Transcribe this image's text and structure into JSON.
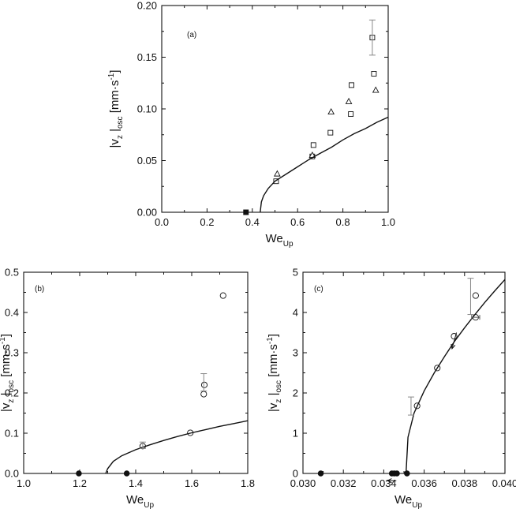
{
  "chart_data": [
    {
      "type": "scatter",
      "panel_label": "(a)",
      "xlabel": {
        "main": "We",
        "sub": "Up"
      },
      "ylabel": {
        "main": "|v",
        "sub1": "z",
        "mid": "|",
        "sub2": "osc",
        "unit": "[mm·s",
        "sup": "-1",
        "close": "]"
      },
      "xlim": [
        0.0,
        1.0
      ],
      "ylim": [
        0.0,
        0.2
      ],
      "xticks": [
        "0.0",
        "0.2",
        "0.4",
        "0.6",
        "0.8",
        "1.0"
      ],
      "yticks": [
        "0.00",
        "0.05",
        "0.10",
        "0.15",
        "0.20"
      ],
      "series": [
        {
          "marker": "square",
          "points": [
            [
              0.505,
              0.03
            ],
            [
              0.665,
              0.054
            ],
            [
              0.67,
              0.065
            ],
            [
              0.745,
              0.077
            ],
            [
              0.835,
              0.095
            ],
            [
              0.838,
              0.123
            ],
            [
              0.93,
              0.169
            ],
            [
              0.937,
              0.134
            ]
          ]
        },
        {
          "marker": "triangle",
          "points": [
            [
              0.51,
              0.037
            ],
            [
              0.665,
              0.055
            ],
            [
              0.748,
              0.097
            ],
            [
              0.826,
              0.107
            ],
            [
              0.945,
              0.118
            ]
          ]
        },
        {
          "marker": "filled-square",
          "points": [
            [
              0.372,
              0.0
            ]
          ]
        },
        {
          "marker": "line",
          "points": [
            [
              0.435,
              0.0
            ],
            [
              0.44,
              0.01
            ],
            [
              0.45,
              0.016
            ],
            [
              0.47,
              0.023
            ],
            [
              0.5,
              0.03
            ],
            [
              0.55,
              0.037
            ],
            [
              0.6,
              0.044
            ],
            [
              0.65,
              0.051
            ],
            [
              0.7,
              0.057
            ],
            [
              0.75,
              0.063
            ],
            [
              0.8,
              0.07
            ],
            [
              0.85,
              0.076
            ],
            [
              0.9,
              0.081
            ],
            [
              0.95,
              0.087
            ],
            [
              1.0,
              0.092
            ]
          ]
        }
      ],
      "errorbars": [
        {
          "x": 0.93,
          "ylow": 0.152,
          "yhigh": 0.186
        }
      ]
    },
    {
      "type": "scatter",
      "panel_label": "(b)",
      "xlabel": {
        "main": "We",
        "sub": "Up"
      },
      "ylabel": {
        "main": "|v",
        "sub1": "z",
        "mid": "|",
        "sub2": "osc",
        "unit": "[mm·s",
        "sup": "-1",
        "close": "]"
      },
      "xlim": [
        1.0,
        1.8
      ],
      "ylim": [
        0.0,
        0.5
      ],
      "xticks": [
        "1.0",
        "1.2",
        "1.4",
        "1.6",
        "1.8"
      ],
      "yticks": [
        "0.0",
        "0.1",
        "0.2",
        "0.3",
        "0.4",
        "0.5"
      ],
      "series": [
        {
          "marker": "circle",
          "points": [
            [
              1.425,
              0.068
            ],
            [
              1.595,
              0.101
            ],
            [
              1.645,
              0.22
            ],
            [
              1.643,
              0.197
            ],
            [
              1.712,
              0.442
            ]
          ]
        },
        {
          "marker": "filled-circle",
          "points": [
            [
              1.197,
              0.0
            ],
            [
              1.368,
              0.0
            ]
          ]
        },
        {
          "marker": "line",
          "points": [
            [
              1.293,
              0.0
            ],
            [
              1.3,
              0.012
            ],
            [
              1.32,
              0.03
            ],
            [
              1.35,
              0.044
            ],
            [
              1.4,
              0.059
            ],
            [
              1.45,
              0.071
            ],
            [
              1.5,
              0.082
            ],
            [
              1.55,
              0.092
            ],
            [
              1.6,
              0.101
            ],
            [
              1.65,
              0.109
            ],
            [
              1.7,
              0.117
            ],
            [
              1.75,
              0.124
            ],
            [
              1.8,
              0.131
            ]
          ]
        }
      ],
      "errorbars": [
        {
          "x": 1.425,
          "ylow": 0.062,
          "yhigh": 0.078
        },
        {
          "x": 1.643,
          "ylow": 0.205,
          "yhigh": 0.248
        }
      ]
    },
    {
      "type": "scatter",
      "panel_label": "(c)",
      "xlabel": {
        "main": "We",
        "sub": "Up"
      },
      "ylabel": {
        "main": "|v",
        "sub1": "z",
        "mid": "|",
        "sub2": "osc",
        "unit": "[mm·s",
        "sup": "-1",
        "close": "]"
      },
      "xlim": [
        0.03,
        0.04
      ],
      "ylim": [
        0,
        5
      ],
      "xticks": [
        "0.030",
        "0.032",
        "0.034",
        "0.036",
        "0.038",
        "0.040"
      ],
      "yticks": [
        "0",
        "1",
        "2",
        "3",
        "4",
        "5"
      ],
      "series": [
        {
          "marker": "circle",
          "points": [
            [
              0.03565,
              1.68
            ],
            [
              0.03665,
              2.62
            ],
            [
              0.03748,
              3.41
            ],
            [
              0.03855,
              3.88
            ],
            [
              0.03855,
              4.42
            ]
          ]
        },
        {
          "marker": "filled-circle",
          "points": [
            [
              0.03088,
              0.0
            ],
            [
              0.0344,
              0.0
            ],
            [
              0.03452,
              0.0
            ],
            [
              0.03465,
              0.0
            ],
            [
              0.03515,
              0.0
            ]
          ]
        },
        {
          "marker": "line",
          "points": [
            [
              0.0351,
              0.0
            ],
            [
              0.0352,
              0.9
            ],
            [
              0.0355,
              1.5
            ],
            [
              0.036,
              2.05
            ],
            [
              0.0365,
              2.5
            ],
            [
              0.037,
              2.9
            ],
            [
              0.0375,
              3.28
            ],
            [
              0.038,
              3.62
            ],
            [
              0.0385,
              3.94
            ],
            [
              0.039,
              4.25
            ],
            [
              0.0395,
              4.54
            ],
            [
              0.04,
              4.82
            ]
          ]
        }
      ],
      "errorbars": [
        {
          "x": 0.03535,
          "ylow": 1.45,
          "yhigh": 1.9
        },
        {
          "x": 0.0383,
          "ylow": 3.95,
          "yhigh": 4.85
        }
      ],
      "hbars": [
        {
          "y": 3.88,
          "xlow": 0.03835,
          "xhigh": 0.03875
        }
      ],
      "arrows": [
        {
          "from": [
            0.0376,
            3.5
          ],
          "to": [
            0.03738,
            3.1
          ]
        },
        {
          "from": [
            0.03462,
            -0.18
          ],
          "to": [
            0.03418,
            -0.18
          ]
        }
      ]
    }
  ]
}
